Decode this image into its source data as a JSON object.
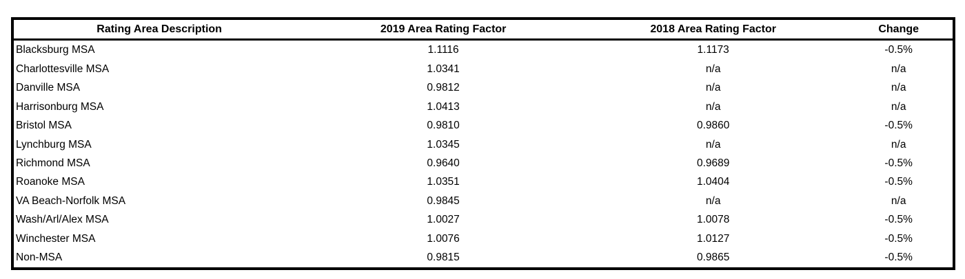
{
  "table": {
    "headers": [
      "Rating Area Description",
      "2019 Area Rating Factor",
      "2018 Area Rating Factor",
      "Change"
    ],
    "rows": [
      [
        "Blacksburg MSA",
        "1.1116",
        "1.1173",
        "-0.5%"
      ],
      [
        "Charlottesville MSA",
        "1.0341",
        "n/a",
        "n/a"
      ],
      [
        "Danville MSA",
        "0.9812",
        "n/a",
        "n/a"
      ],
      [
        "Harrisonburg MSA",
        "1.0413",
        "n/a",
        "n/a"
      ],
      [
        "Bristol MSA",
        "0.9810",
        "0.9860",
        "-0.5%"
      ],
      [
        "Lynchburg MSA",
        "1.0345",
        "n/a",
        "n/a"
      ],
      [
        "Richmond MSA",
        "0.9640",
        "0.9689",
        "-0.5%"
      ],
      [
        "Roanoke MSA",
        "1.0351",
        "1.0404",
        "-0.5%"
      ],
      [
        "VA Beach-Norfolk MSA",
        "0.9845",
        "n/a",
        "n/a"
      ],
      [
        "Wash/Arl/Alex MSA",
        "1.0027",
        "1.0078",
        "-0.5%"
      ],
      [
        "Winchester MSA",
        "1.0076",
        "1.0127",
        "-0.5%"
      ],
      [
        "Non-MSA",
        "0.9815",
        "0.9865",
        "-0.5%"
      ]
    ]
  },
  "colors": {
    "border": "#000000",
    "text": "#000000",
    "background": "#ffffff"
  }
}
